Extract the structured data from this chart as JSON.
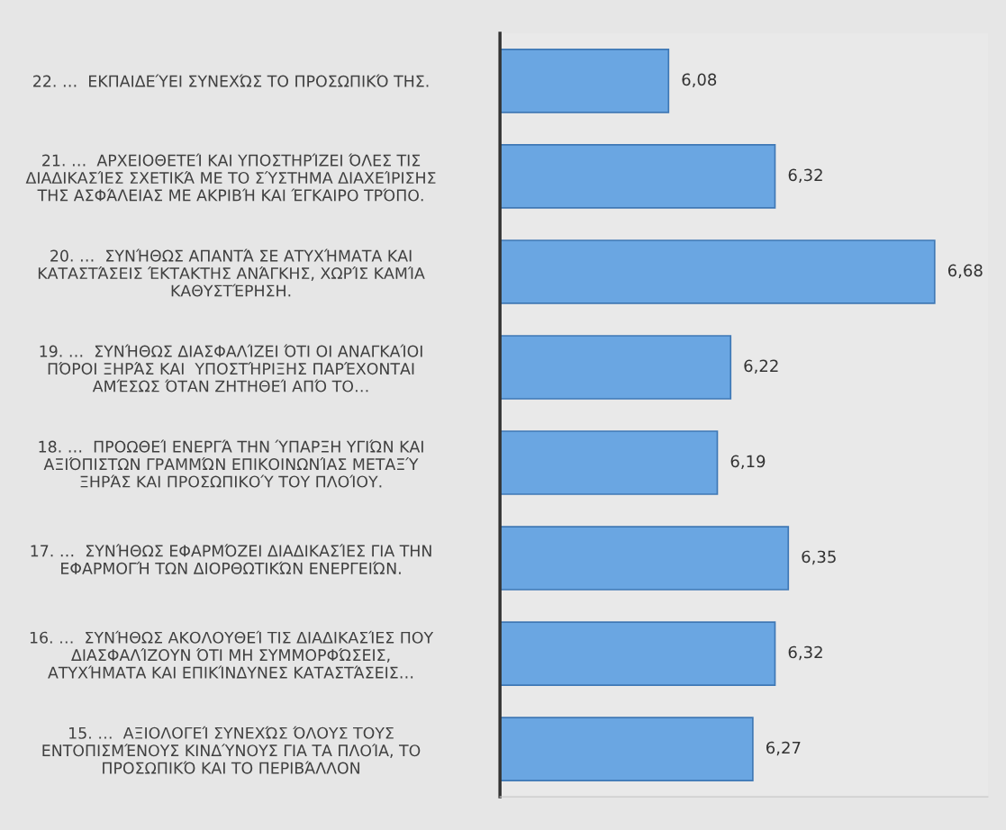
{
  "chart_data": {
    "type": "bar",
    "orientation": "horizontal",
    "categories": [
      "22. …  ΕΚΠΑΙΔΕΎΕΙ ΣΥΝΕΧΏΣ ΤΟ ΠΡΟΣΩΠΙΚΌ ΤΗΣ.",
      "21. …  ΑΡΧΕΙΟΘΕΤΕΊ ΚΑΙ ΥΠΟΣΤΗΡΊΖΕΙ ΌΛΕΣ ΤΙΣ\nΔΙΑΔΙΚΑΣΊΕΣ ΣΧΕΤΙΚΆ ΜΕ ΤΟ ΣΎΣΤΗΜΑ ΔΙΑΧΕΊΡΙΣΗΣ\nΤΗΣ ΑΣΦΆΛΕΙΑΣ ΜΕ ΑΚΡΙΒΉ ΚΑΙ ΈΓΚΑΙΡΟ ΤΡΌΠΟ.",
      "20. …  ΣΥΝΉΘΩΣ ΑΠΑΝΤΆ ΣΕ ΑΤΥΧΉΜΑΤΑ ΚΑΙ\nΚΑΤΑΣΤΆΣΕΙΣ ΈΚΤΑΚΤΗΣ ΑΝΆΓΚΗΣ, ΧΩΡΊΣ ΚΑΜΊΑ\nΚΑΘΥΣΤΈΡΗΣΗ.",
      "19. …  ΣΥΝΉΘΩΣ ΔΙΑΣΦΑΛΊΖΕΙ ΌΤΙ ΟΙ ΑΝΑΓΚΑΊΟΙ\nΠΌΡΟΙ ΞΗΡΆΣ ΚΑΙ  ΥΠΟΣΤΉΡΙΞΗΣ ΠΑΡΈΧΟΝΤΑΙ\nΑΜΈΣΩΣ ΌΤΑΝ ΖΗΤΗΘΕΊ ΑΠΌ ΤΟ…",
      "18. …  ΠΡΟΩΘΕΊ ΕΝΕΡΓΆ ΤΗΝ ΎΠΑΡΞΗ ΥΓΙΏΝ ΚΑΙ\nΑΞΙΌΠΙΣΤΩΝ ΓΡΑΜΜΏΝ ΕΠΙΚΟΙΝΩΝΊΑΣ ΜΕΤΑΞΎ\nΞΗΡΆΣ ΚΑΙ ΠΡΟΣΩΠΙΚΟΎ ΤΟΥ ΠΛΟΊΟΥ.",
      "17. …  ΣΥΝΉΘΩΣ ΕΦΑΡΜΌΖΕΙ ΔΙΑΔΙΚΑΣΊΕΣ ΓΙΑ ΤΗΝ\nΕΦΑΡΜΟΓΉ ΤΩΝ ΔΙΟΡΘΩΤΙΚΏΝ ΕΝΕΡΓΕΙΏΝ.",
      "16. …  ΣΥΝΉΘΩΣ ΑΚΟΛΟΥΘΕΊ ΤΙΣ ΔΙΑΔΙΚΑΣΊΕΣ ΠΟΥ\nΔΙΑΣΦΑΛΊΖΟΥΝ ΌΤΙ ΜΗ ΣΥΜΜΟΡΦΏΣΕΙΣ,\nΑΤΥΧΉΜΑΤΑ ΚΑΙ ΕΠΙΚΊΝΔΥΝΕΣ ΚΑΤΑΣΤΆΣΕΙΣ…",
      "15. …  ΑΞΙΟΛΟΓΕΊ ΣΥΝΕΧΏΣ ΌΛΟΥΣ ΤΟΥΣ\nΕΝΤΟΠΙΣΜΈΝΟΥΣ ΚΙΝΔΎΝΟΥΣ ΓΙΑ ΤΑ ΠΛΟΊΑ, ΤΟ\nΠΡΟΣΩΠΙΚΌ ΚΑΙ ΤΟ ΠΕΡΙΒΆΛΛΟΝ"
    ],
    "values": [
      6.08,
      6.32,
      6.68,
      6.22,
      6.19,
      6.35,
      6.32,
      6.27
    ],
    "value_labels": [
      "6,08",
      "6,32",
      "6,68",
      "6,22",
      "6,19",
      "6,35",
      "6,32",
      "6,27"
    ],
    "color": "#6aa6e2",
    "xlim": [
      5.7,
      6.8
    ],
    "tick_labels": "y",
    "grid": false,
    "legend": false
  }
}
